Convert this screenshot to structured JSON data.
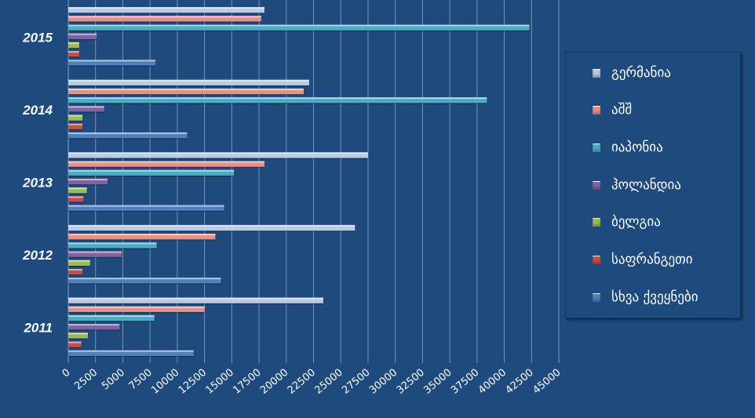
{
  "chart_data": {
    "type": "bar",
    "orientation": "horizontal",
    "categories": [
      "2011",
      "2012",
      "2013",
      "2014",
      "2015"
    ],
    "series": [
      {
        "name": "სხვა ქვეყნები",
        "values": [
          11500,
          14000,
          14300,
          10900,
          8000
        ]
      },
      {
        "name": "საფრანგეთი",
        "values": [
          1200,
          1300,
          1400,
          1300,
          1000
        ]
      },
      {
        "name": "ბელგია",
        "values": [
          1800,
          2000,
          1700,
          1300,
          1000
        ]
      },
      {
        "name": "ჰოლანდია",
        "values": [
          4700,
          4900,
          3600,
          3300,
          2600
        ]
      },
      {
        "name": "იაპონია",
        "values": [
          7900,
          8100,
          15200,
          38400,
          42300
        ]
      },
      {
        "name": "აშშ",
        "values": [
          12500,
          13500,
          18000,
          21600,
          17700
        ]
      },
      {
        "name": "გერმანია",
        "values": [
          23400,
          26300,
          27500,
          22100,
          18000
        ]
      }
    ],
    "xlim": [
      0,
      45000
    ],
    "xticks": [
      "0",
      "2500",
      "5000",
      "7500",
      "10000",
      "12500",
      "15000",
      "17500",
      "20000",
      "22500",
      "25000",
      "27500",
      "30000",
      "32500",
      "35000",
      "37500",
      "40000",
      "42500",
      "45000"
    ],
    "grid": "vertical",
    "legend": "right",
    "colors": {
      "სხვა ქვეყნები": "#4f81bd",
      "საფრანგეთი": "#c0504d",
      "ბელგია": "#9bbb59",
      "ჰოლანდია": "#8064a2",
      "იაპონია": "#4bacc6",
      "აშშ": "#e6908c",
      "გერმანია": "#b8cce4"
    },
    "background": "#1f4a7e"
  },
  "legend": {
    "items": [
      {
        "label": "გერმანია",
        "color": "#b8cce4"
      },
      {
        "label": "აშშ",
        "color": "#e6908c"
      },
      {
        "label": "იაპონია",
        "color": "#4bacc6"
      },
      {
        "label": "ჰოლანდია",
        "color": "#8064a2"
      },
      {
        "label": "ბელგია",
        "color": "#9bbb59"
      },
      {
        "label": "საფრანგეთი",
        "color": "#c0504d"
      },
      {
        "label": "სხვა ქვეყნები",
        "color": "#4f81bd"
      }
    ]
  }
}
